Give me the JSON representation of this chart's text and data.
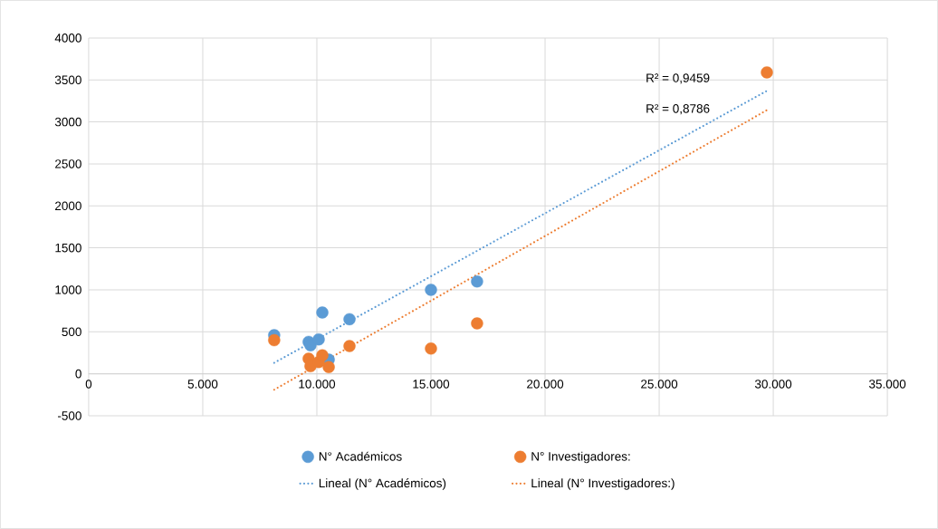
{
  "chart_data": {
    "type": "scatter",
    "xlim": [
      0,
      35000
    ],
    "ylim": [
      -500,
      4000
    ],
    "xticks": [
      0,
      {
        "value": 5000,
        "label": "5.000"
      },
      {
        "value": 10000,
        "label": "10.000"
      },
      {
        "value": 15000,
        "label": "15.000"
      },
      {
        "value": 20000,
        "label": "20.000"
      },
      {
        "value": 25000,
        "label": "25.000"
      },
      {
        "value": 30000,
        "label": "30.000"
      },
      {
        "value": 35000,
        "label": "35.000"
      }
    ],
    "yticks": [
      -500,
      0,
      500,
      1000,
      1500,
      2000,
      2500,
      3000,
      3500,
      4000
    ],
    "grid": true,
    "legend": "bottom",
    "annotations": [
      "R² = 0,9459",
      "R² = 0,8786"
    ],
    "series": [
      {
        "name": "N° Académicos",
        "color": "#5b9bd5",
        "marker": "circle",
        "x": [
          8130,
          9640,
          9720,
          10080,
          10240,
          10520,
          11430,
          15000,
          17020
        ],
        "values": [
          460,
          380,
          340,
          410,
          730,
          170,
          650,
          1000,
          1100
        ]
      },
      {
        "name": "N° Investigadores:",
        "color": "#ed7d31",
        "marker": "circle",
        "x": [
          8130,
          9640,
          9720,
          10080,
          10240,
          10520,
          11430,
          15000,
          17020,
          29720
        ],
        "values": [
          400,
          180,
          90,
          140,
          220,
          80,
          330,
          300,
          600,
          3590
        ]
      },
      {
        "name": "Lineal (N° Académicos)",
        "type": "line",
        "marker": "none",
        "line_style": "dotted",
        "color": "#5b9bd5",
        "x": [
          8130,
          29720
        ],
        "values": [
          130,
          3370
        ]
      },
      {
        "name": "Lineal (N° Investigadores:)",
        "type": "line",
        "marker": "none",
        "line_style": "dotted",
        "color": "#ed7d31",
        "x": [
          8130,
          29720
        ],
        "values": [
          -190,
          3140
        ]
      }
    ]
  }
}
